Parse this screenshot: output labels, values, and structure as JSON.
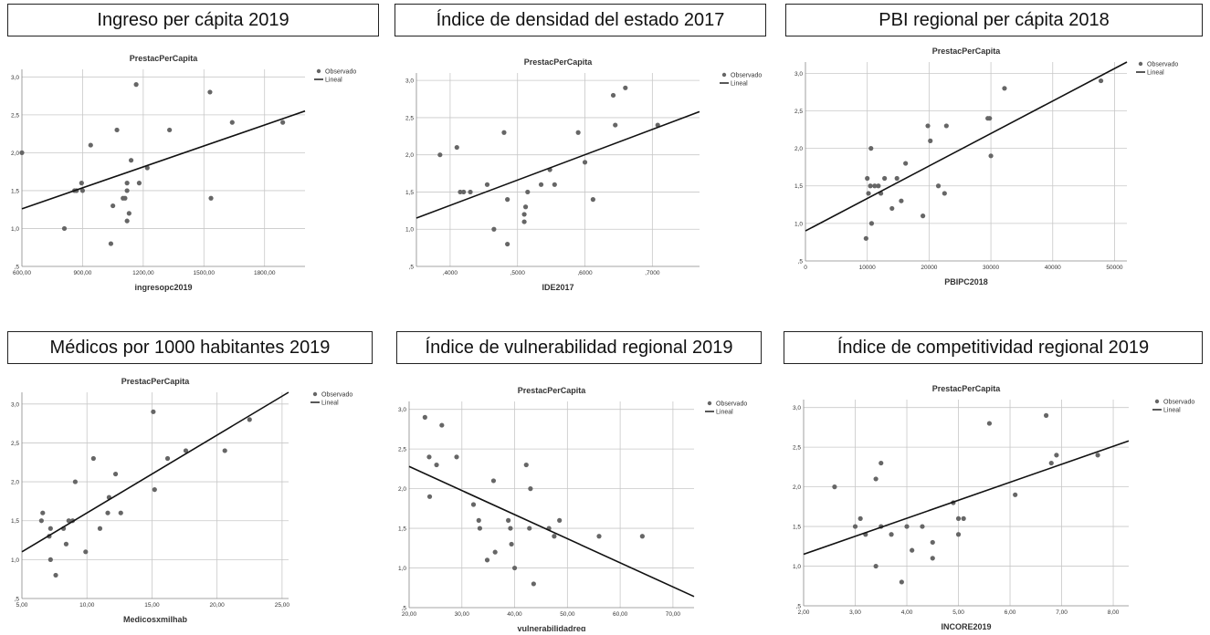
{
  "chart_data": [
    {
      "type": "scatter",
      "panel_title": "Ingreso per cápita 2019",
      "title": "PrestacPerCapita",
      "xlabel": "ingresopc2019",
      "ylabel": "",
      "xlim": [
        600,
        2000
      ],
      "ylim": [
        0.5,
        3.1
      ],
      "xticks": [
        600,
        900,
        1200,
        1500,
        1800
      ],
      "xtick_labels": [
        "600,00",
        "900,00",
        "1200,00",
        "1500,00",
        "1800,00"
      ],
      "yticks": [
        0.5,
        1.0,
        1.5,
        2.0,
        2.5,
        3.0
      ],
      "ytick_labels": [
        ",5",
        "1,0",
        "1,5",
        "2,0",
        "2,5",
        "3,0"
      ],
      "legend": [
        "Observado",
        "Lineal"
      ],
      "legend_position": "top-right",
      "grid": true,
      "points": [
        [
          600,
          2.0
        ],
        [
          810,
          1.0
        ],
        [
          860,
          1.5
        ],
        [
          870,
          1.5
        ],
        [
          895,
          1.6
        ],
        [
          900,
          1.5
        ],
        [
          940,
          2.1
        ],
        [
          1040,
          0.8
        ],
        [
          1050,
          1.3
        ],
        [
          1070,
          2.3
        ],
        [
          1100,
          1.4
        ],
        [
          1110,
          1.4
        ],
        [
          1120,
          1.5
        ],
        [
          1120,
          1.6
        ],
        [
          1120,
          1.1
        ],
        [
          1130,
          1.2
        ],
        [
          1140,
          1.9
        ],
        [
          1165,
          2.9
        ],
        [
          1180,
          1.6
        ],
        [
          1220,
          1.8
        ],
        [
          1330,
          2.3
        ],
        [
          1530,
          2.8
        ],
        [
          1535,
          1.4
        ],
        [
          1640,
          2.4
        ],
        [
          1890,
          2.4
        ]
      ],
      "fit_line": [
        [
          600,
          1.26
        ],
        [
          2000,
          2.55
        ]
      ]
    },
    {
      "type": "scatter",
      "panel_title": "Índice de densidad del estado 2017",
      "title": "PrestacPerCapita",
      "xlabel": "IDE2017",
      "ylabel": "",
      "xlim": [
        0.35,
        0.77
      ],
      "ylim": [
        0.5,
        3.1
      ],
      "xticks": [
        0.4,
        0.5,
        0.6,
        0.7
      ],
      "xtick_labels": [
        ",4000",
        ",5000",
        ",6000",
        ",7000"
      ],
      "yticks": [
        0.5,
        1.0,
        1.5,
        2.0,
        2.5,
        3.0
      ],
      "ytick_labels": [
        ",5",
        "1,0",
        "1,5",
        "2,0",
        "2,5",
        "3,0"
      ],
      "legend": [
        "Observado",
        "Lineal"
      ],
      "legend_position": "top-right",
      "grid": true,
      "points": [
        [
          0.385,
          2.0
        ],
        [
          0.41,
          2.1
        ],
        [
          0.415,
          1.5
        ],
        [
          0.42,
          1.5
        ],
        [
          0.43,
          1.5
        ],
        [
          0.455,
          1.6
        ],
        [
          0.465,
          1.0
        ],
        [
          0.48,
          2.3
        ],
        [
          0.485,
          1.4
        ],
        [
          0.485,
          0.8
        ],
        [
          0.51,
          1.2
        ],
        [
          0.51,
          1.1
        ],
        [
          0.512,
          1.3
        ],
        [
          0.515,
          1.5
        ],
        [
          0.535,
          1.6
        ],
        [
          0.548,
          1.8
        ],
        [
          0.555,
          1.6
        ],
        [
          0.59,
          2.3
        ],
        [
          0.6,
          1.9
        ],
        [
          0.612,
          1.4
        ],
        [
          0.642,
          2.8
        ],
        [
          0.645,
          2.4
        ],
        [
          0.66,
          2.9
        ],
        [
          0.708,
          2.4
        ]
      ],
      "fit_line": [
        [
          0.35,
          1.15
        ],
        [
          0.77,
          2.58
        ]
      ]
    },
    {
      "type": "scatter",
      "panel_title": "PBI regional per cápita 2018",
      "title": "PrestacPerCapita",
      "xlabel": "PBIPC2018",
      "ylabel": "",
      "xlim": [
        0,
        52000
      ],
      "ylim": [
        0.5,
        3.15
      ],
      "xticks": [
        0,
        10000,
        20000,
        30000,
        40000,
        50000
      ],
      "xtick_labels": [
        "0",
        "10000",
        "20000",
        "30000",
        "40000",
        "50000"
      ],
      "yticks": [
        0.5,
        1.0,
        1.5,
        2.0,
        2.5,
        3.0
      ],
      "ytick_labels": [
        ",5",
        "1,0",
        "1,5",
        "2,0",
        "2,5",
        "3,0"
      ],
      "legend": [
        "Observado",
        "Lineal"
      ],
      "legend_position": "top-right",
      "grid": true,
      "points": [
        [
          9800,
          0.8
        ],
        [
          10000,
          1.6
        ],
        [
          10200,
          1.4
        ],
        [
          10500,
          1.5
        ],
        [
          10600,
          2.0
        ],
        [
          10700,
          1.0
        ],
        [
          11200,
          1.5
        ],
        [
          11800,
          1.5
        ],
        [
          12200,
          1.4
        ],
        [
          12800,
          1.6
        ],
        [
          14000,
          1.2
        ],
        [
          14800,
          1.6
        ],
        [
          15500,
          1.3
        ],
        [
          16200,
          1.8
        ],
        [
          19000,
          1.1
        ],
        [
          19800,
          2.3
        ],
        [
          20200,
          2.1
        ],
        [
          21500,
          1.5
        ],
        [
          22500,
          1.4
        ],
        [
          22800,
          2.3
        ],
        [
          29500,
          2.4
        ],
        [
          29800,
          2.4
        ],
        [
          30000,
          1.9
        ],
        [
          32200,
          2.8
        ],
        [
          47800,
          2.9
        ]
      ],
      "fit_line": [
        [
          0,
          0.9
        ],
        [
          52000,
          3.15
        ]
      ]
    },
    {
      "type": "scatter",
      "panel_title": "Médicos por 1000 habitantes 2019",
      "title": "PrestacPerCapita",
      "xlabel": "Medicosxmilhab",
      "ylabel": "",
      "xlim": [
        5,
        25.5
      ],
      "ylim": [
        0.5,
        3.15
      ],
      "xticks": [
        5,
        10,
        15,
        20,
        25
      ],
      "xtick_labels": [
        "5,00",
        "10,00",
        "15,00",
        "20,00",
        "25,00"
      ],
      "yticks": [
        0.5,
        1.0,
        1.5,
        2.0,
        2.5,
        3.0
      ],
      "ytick_labels": [
        ",5",
        "1,0",
        "1,5",
        "2,0",
        "2,5",
        "3,0"
      ],
      "legend": [
        "Observado",
        "Lineal"
      ],
      "legend_position": "top-right",
      "grid": true,
      "points": [
        [
          6.5,
          1.5
        ],
        [
          6.6,
          1.6
        ],
        [
          7.1,
          1.3
        ],
        [
          7.2,
          1.4
        ],
        [
          7.2,
          1.0
        ],
        [
          7.6,
          0.8
        ],
        [
          8.2,
          1.4
        ],
        [
          8.4,
          1.2
        ],
        [
          8.6,
          1.5
        ],
        [
          8.9,
          1.5
        ],
        [
          9.1,
          2.0
        ],
        [
          9.9,
          1.1
        ],
        [
          10.5,
          2.3
        ],
        [
          11.0,
          1.4
        ],
        [
          11.6,
          1.6
        ],
        [
          11.7,
          1.8
        ],
        [
          12.2,
          2.1
        ],
        [
          12.6,
          1.6
        ],
        [
          15.1,
          2.9
        ],
        [
          15.2,
          1.9
        ],
        [
          16.2,
          2.3
        ],
        [
          17.6,
          2.4
        ],
        [
          20.6,
          2.4
        ],
        [
          22.5,
          2.8
        ]
      ],
      "fit_line": [
        [
          5,
          1.1
        ],
        [
          25.5,
          3.15
        ]
      ]
    },
    {
      "type": "scatter",
      "panel_title": "Índice de vulnerabilidad regional 2019",
      "title": "PrestacPerCapita",
      "xlabel": "vulnerabilidadreg",
      "ylabel": "",
      "xlim": [
        20,
        74
      ],
      "ylim": [
        0.5,
        3.1
      ],
      "xticks": [
        20,
        30,
        40,
        50,
        60,
        70
      ],
      "xtick_labels": [
        "20,00",
        "30,00",
        "40,00",
        "50,00",
        "60,00",
        "70,00"
      ],
      "yticks": [
        0.5,
        1.0,
        1.5,
        2.0,
        2.5,
        3.0
      ],
      "ytick_labels": [
        ",5",
        "1,0",
        "1,5",
        "2,0",
        "2,5",
        "3,0"
      ],
      "legend": [
        "Observado",
        "Lineal"
      ],
      "legend_position": "top-right",
      "grid": true,
      "points": [
        [
          23,
          2.9
        ],
        [
          23.8,
          2.4
        ],
        [
          23.9,
          1.9
        ],
        [
          25.2,
          2.3
        ],
        [
          26.2,
          2.8
        ],
        [
          29,
          2.4
        ],
        [
          32.2,
          1.8
        ],
        [
          33.2,
          1.6
        ],
        [
          33.4,
          1.5
        ],
        [
          34.8,
          1.1
        ],
        [
          36,
          2.1
        ],
        [
          36.3,
          1.2
        ],
        [
          38.8,
          1.6
        ],
        [
          39.2,
          1.5
        ],
        [
          39.4,
          1.3
        ],
        [
          40,
          1.0
        ],
        [
          42.2,
          2.3
        ],
        [
          42.8,
          1.5
        ],
        [
          43,
          2.0
        ],
        [
          43.6,
          0.8
        ],
        [
          46.5,
          1.5
        ],
        [
          47.5,
          1.4
        ],
        [
          48.5,
          1.6
        ],
        [
          56,
          1.4
        ],
        [
          64.2,
          1.4
        ]
      ],
      "fit_line": [
        [
          20,
          2.28
        ],
        [
          74,
          0.64
        ]
      ]
    },
    {
      "type": "scatter",
      "panel_title": "Índice de competitividad regional 2019",
      "title": "PrestacPerCapita",
      "xlabel": "INCORE2019",
      "ylabel": "",
      "xlim": [
        2.0,
        8.3
      ],
      "ylim": [
        0.5,
        3.1
      ],
      "xticks": [
        2,
        3,
        4,
        5,
        6,
        7,
        8
      ],
      "xtick_labels": [
        "2,00",
        "3,00",
        "4,00",
        "5,00",
        "6,00",
        "7,00",
        "8,00"
      ],
      "yticks": [
        0.5,
        1.0,
        1.5,
        2.0,
        2.5,
        3.0
      ],
      "ytick_labels": [
        ",5",
        "1,0",
        "1,5",
        "2,0",
        "2,5",
        "3,0"
      ],
      "legend": [
        "Observado",
        "Lineal"
      ],
      "legend_position": "top-right",
      "grid": true,
      "points": [
        [
          2.6,
          2.0
        ],
        [
          3.0,
          1.5
        ],
        [
          3.1,
          1.6
        ],
        [
          3.2,
          1.4
        ],
        [
          3.4,
          2.1
        ],
        [
          3.4,
          1.0
        ],
        [
          3.5,
          2.3
        ],
        [
          3.5,
          1.5
        ],
        [
          3.7,
          1.4
        ],
        [
          3.9,
          0.8
        ],
        [
          4.0,
          1.5
        ],
        [
          4.1,
          1.2
        ],
        [
          4.3,
          1.5
        ],
        [
          4.5,
          1.3
        ],
        [
          4.5,
          1.1
        ],
        [
          4.9,
          1.8
        ],
        [
          5.0,
          1.6
        ],
        [
          5.0,
          1.4
        ],
        [
          5.1,
          1.6
        ],
        [
          5.6,
          2.8
        ],
        [
          6.1,
          1.9
        ],
        [
          6.7,
          2.9
        ],
        [
          6.8,
          2.3
        ],
        [
          6.9,
          2.4
        ],
        [
          7.7,
          2.4
        ]
      ],
      "fit_line": [
        [
          2.0,
          1.15
        ],
        [
          8.3,
          2.58
        ]
      ]
    }
  ]
}
